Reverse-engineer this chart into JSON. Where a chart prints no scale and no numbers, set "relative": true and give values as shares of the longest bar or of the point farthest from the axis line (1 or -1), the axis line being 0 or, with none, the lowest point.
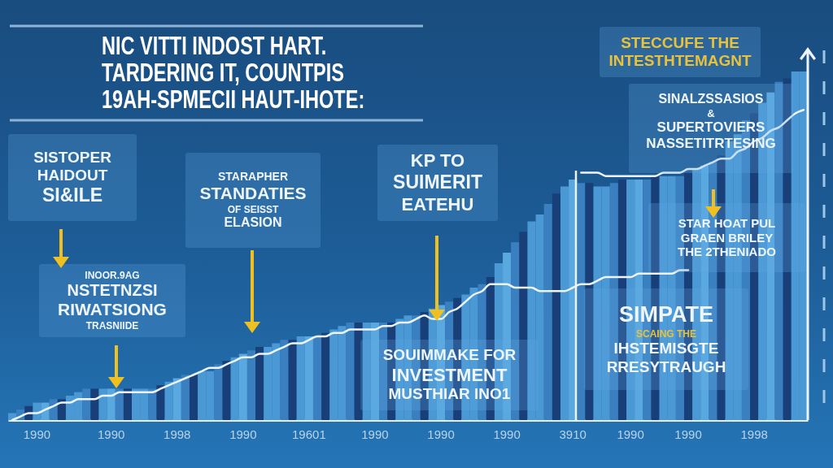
{
  "chart_data": {
    "type": "bar",
    "relative": true,
    "title": "NIC VITTI INDOST HART.\nTARDERING IT, COUNTPIS\n19AH-SPMECII HAUT-IHOTE:",
    "categories": [
      null,
      null,
      null,
      "1990",
      null,
      null,
      null,
      null,
      null,
      null,
      null,
      null,
      "1990",
      null,
      null,
      null,
      null,
      null,
      null,
      null,
      "1998",
      null,
      null,
      null,
      null,
      null,
      null,
      null,
      "1990",
      null,
      null,
      null,
      null,
      null,
      null,
      null,
      "19601",
      null,
      null,
      null,
      null,
      null,
      null,
      null,
      "1990",
      null,
      null,
      null,
      null,
      null,
      null,
      null,
      "1990",
      null,
      null,
      null,
      null,
      null,
      null,
      null,
      "1990",
      null,
      null,
      null,
      null,
      null,
      null,
      null,
      "3910",
      null,
      null,
      null,
      null,
      null,
      null,
      "1990",
      null,
      null,
      null,
      null,
      null,
      null,
      "1990",
      null,
      null,
      null,
      null,
      null,
      null,
      null,
      "1998",
      null,
      null,
      null,
      null,
      null,
      null
    ],
    "series": [
      {
        "values": [
          0.02,
          0.03,
          0.04,
          0.05,
          0.05,
          0.06,
          0.06,
          0.07,
          0.08,
          0.09,
          0.09,
          0.09,
          0.09,
          0.09,
          0.09,
          0.09,
          0.09,
          0.09,
          0.1,
          0.11,
          0.12,
          0.13,
          0.13,
          0.14,
          0.14,
          0.16,
          0.17,
          0.18,
          0.19,
          0.2,
          0.21,
          0.21,
          0.22,
          0.23,
          0.23,
          0.24,
          0.24,
          0.24,
          0.25,
          0.26,
          0.27,
          0.28,
          0.28,
          0.28,
          0.28,
          0.28,
          0.28,
          0.29,
          0.3,
          0.3,
          0.31,
          0.32,
          0.33,
          0.34,
          0.35,
          0.36,
          0.38,
          0.39,
          0.41,
          0.45,
          0.48,
          0.51,
          0.54,
          0.57,
          0.59,
          0.62,
          0.65,
          0.67,
          0.69,
          0.68,
          0.68,
          0.67,
          0.67,
          0.68,
          0.69,
          0.69,
          0.69,
          0.69,
          0.7,
          0.7,
          0.7,
          0.7,
          0.71,
          0.72,
          0.73,
          0.74,
          0.76,
          0.8,
          0.82,
          0.86,
          0.88,
          0.91,
          0.94,
          0.97,
          0.98,
          1,
          1
        ],
        "colors": [
          "#4a98d4",
          "#3a80c0",
          "#193f78",
          "#4a98d4",
          "#5aa8e0",
          "#3a80c0",
          "#193f78",
          "#4a98d4",
          "#4a98d4",
          "#3a80c0",
          "#193f78",
          "#4a98d4",
          "#5aa8e0",
          "#3a80c0",
          "#193f78",
          "#4a98d4",
          "#4a98d4",
          "#3a80c0",
          "#193f78",
          "#4a98d4",
          "#5aa8e0",
          "#3a80c0",
          "#193f78",
          "#4a98d4",
          "#4a98d4",
          "#3a80c0",
          "#193f78",
          "#4a98d4",
          "#5aa8e0",
          "#3a80c0",
          "#193f78",
          "#4a98d4",
          "#4a98d4",
          "#3a80c0",
          "#193f78",
          "#4a98d4",
          "#5aa8e0",
          "#3a80c0",
          "#193f78",
          "#4a98d4",
          "#4a98d4",
          "#3a80c0",
          "#193f78",
          "#4a98d4",
          "#5aa8e0",
          "#3a80c0",
          "#193f78",
          "#4a98d4",
          "#4a98d4",
          "#3a80c0",
          "#193f78",
          "#4a98d4",
          "#5aa8e0",
          "#3a80c0",
          "#193f78",
          "#4a98d4",
          "#4a98d4",
          "#3a80c0",
          "#193f78",
          "#4a98d4",
          "#5aa8e0",
          "#3a80c0",
          "#193f78",
          "#4a98d4",
          "#4a98d4",
          "#3a80c0",
          "#193f78",
          "#4a98d4",
          "#5aa8e0",
          "#3a80c0",
          "#193f78",
          "#4a98d4",
          "#4a98d4",
          "#3a80c0",
          "#193f78",
          "#4a98d4",
          "#5aa8e0",
          "#3a80c0",
          "#193f78",
          "#4a98d4",
          "#4a98d4",
          "#3a80c0",
          "#193f78",
          "#4a98d4",
          "#5aa8e0",
          "#3a80c0",
          "#193f78",
          "#4a98d4",
          "#4a98d4",
          "#3a80c0",
          "#193f78",
          "#4a98d4",
          "#5aa8e0",
          "#3a80c0",
          "#193f78",
          "#4a98d4",
          "#4a98d4"
        ]
      },
      {
        "type": "line",
        "color": "#eef4fa",
        "values": [
          0,
          0.01,
          0.02,
          0.02,
          0.03,
          0.04,
          0.05,
          0.05,
          0.06,
          0.06,
          0.06,
          0.07,
          0.07,
          0.08,
          0.08,
          0.08,
          0.08,
          0.08,
          0.09,
          0.1,
          0.11,
          0.12,
          0.13,
          0.14,
          0.15,
          0.15,
          0.16,
          0.17,
          0.18,
          0.18,
          0.19,
          0.19,
          0.2,
          0.21,
          0.22,
          0.22,
          0.23,
          0.24,
          0.24,
          0.25,
          0.25,
          0.26,
          0.26,
          0.26,
          0.26,
          0.27,
          0.27,
          0.28,
          0.28,
          0.29,
          0.3,
          0.29,
          0.29,
          0.31,
          0.32,
          0.34,
          0.36,
          0.37,
          0.39,
          0.39,
          0.39,
          0.38,
          0.38,
          0.38,
          0.37,
          0.37,
          0.37,
          0.37,
          0.38,
          0.39,
          0.39,
          0.4,
          0.41,
          0.41,
          0.41,
          0.41,
          0.42,
          0.42,
          0.42,
          0.42,
          0.42,
          0.43,
          0.43,
          null,
          null,
          null,
          null,
          null,
          null,
          null,
          null,
          null,
          null,
          null,
          null,
          null,
          null
        ]
      },
      {
        "type": "line",
        "color": "#eef4fa",
        "values": [
          null,
          null,
          null,
          null,
          null,
          null,
          null,
          null,
          null,
          null,
          null,
          null,
          null,
          null,
          null,
          null,
          null,
          null,
          null,
          null,
          null,
          null,
          null,
          null,
          null,
          null,
          null,
          null,
          null,
          null,
          null,
          null,
          null,
          null,
          null,
          null,
          null,
          null,
          null,
          null,
          null,
          null,
          null,
          null,
          null,
          null,
          null,
          null,
          null,
          null,
          null,
          null,
          null,
          null,
          null,
          null,
          null,
          null,
          null,
          null,
          null,
          null,
          null,
          null,
          null,
          null,
          null,
          null,
          null,
          0.71,
          0.71,
          0.71,
          0.7,
          0.7,
          0.7,
          0.7,
          0.7,
          0.7,
          0.7,
          0.71,
          0.71,
          0.71,
          0.72,
          0.72,
          0.73,
          0.74,
          0.75,
          0.75,
          0.77,
          0.78,
          0.8,
          0.81,
          0.83,
          0.84,
          0.86,
          0.88,
          0.89
        ]
      }
    ],
    "annotations": [
      "SISTOPER\nHAIDOUT\nSI&ILE",
      "STARAPHER\nSTANDATIES\nOF SEISST\nELASION",
      "KP TO\nSUIMERIT\nEATEHU",
      "INOOR.9AG\nNSTETNZSI\nRIWATSIONG\nTRASNIIDE",
      "SOUIMMAKE FOR\nINVESTMENT\nMUSTHIAR INO1",
      "STECCUFE THE\nINTESTHTEMAGNT",
      "SINALZSSASIOS\n&\nSUPERTOVIERS\nNASSETITRTESING",
      "STAR HOAT PUL\nGRAEN BRILEY\nTHE 2THENIADO",
      "SIMPATE\nSCAING THE\nIHSTEMISGTE\nRRESYTRAUGH"
    ]
  }
}
